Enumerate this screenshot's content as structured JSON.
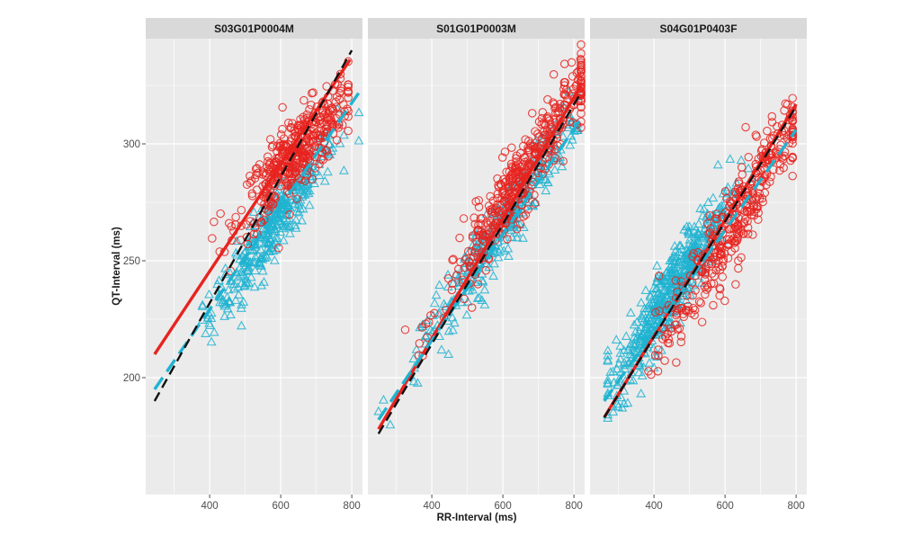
{
  "chart_data": {
    "type": "scatter",
    "xlabel": "RR-Interval (ms)",
    "ylabel": "QT-Interval (ms)",
    "xlim": [
      220,
      830
    ],
    "ylim": [
      150,
      345
    ],
    "x_ticks": [
      400,
      600,
      800
    ],
    "y_ticks": [
      200,
      250,
      300
    ],
    "grid": true,
    "colors": {
      "red": "#e8231f",
      "cyan": "#1fb3d1",
      "black": "#111111",
      "panel_bg": "#ebebeb",
      "strip_bg": "#d9d9d9",
      "grid": "#ffffff"
    },
    "panels": [
      {
        "title": "S03G01P0004M",
        "red_cloud": {
          "x_range": [
            390,
            790
          ],
          "center": [
            640,
            295
          ],
          "slope": 0.16,
          "spread": 8,
          "n": 420
        },
        "cyan_cloud": {
          "x_range": [
            380,
            820
          ],
          "center": [
            580,
            265
          ],
          "slope": 0.21,
          "spread": 7,
          "n": 360
        },
        "lines": [
          {
            "color": "red",
            "style": "solid",
            "x": [
              245,
              795
            ],
            "y": [
              210,
              336
            ]
          },
          {
            "color": "cyan",
            "style": "dashed",
            "x": [
              245,
              825
            ],
            "y": [
              195,
              323
            ]
          },
          {
            "color": "black",
            "style": "dashed",
            "x": [
              245,
              800
            ],
            "y": [
              190,
              340
            ]
          }
        ]
      },
      {
        "title": "S01G01P0003M",
        "red_cloud": {
          "x_range": [
            280,
            820
          ],
          "center": [
            650,
            285
          ],
          "slope": 0.23,
          "spread": 8,
          "n": 440
        },
        "cyan_cloud": {
          "x_range": [
            250,
            810
          ],
          "center": [
            600,
            265
          ],
          "slope": 0.23,
          "spread": 7,
          "n": 330
        },
        "lines": [
          {
            "color": "red",
            "style": "solid",
            "x": [
              250,
              820
            ],
            "y": [
              178,
              325
            ]
          },
          {
            "color": "cyan",
            "style": "dashed",
            "x": [
              250,
              820
            ],
            "y": [
              182,
              311
            ]
          },
          {
            "color": "black",
            "style": "dashed",
            "x": [
              250,
              820
            ],
            "y": [
              176,
              322
            ]
          }
        ]
      },
      {
        "title": "S04G01P0403F",
        "red_cloud": {
          "x_range": [
            270,
            790
          ],
          "center": [
            620,
            265
          ],
          "slope": 0.26,
          "spread": 9,
          "n": 380
        },
        "cyan_cloud": {
          "x_range": [
            270,
            680
          ],
          "center": [
            450,
            238
          ],
          "slope": 0.24,
          "spread": 8,
          "n": 520
        },
        "lines": [
          {
            "color": "red",
            "style": "solid",
            "x": [
              260,
              800
            ],
            "y": [
              183,
              317
            ]
          },
          {
            "color": "cyan",
            "style": "dashed",
            "x": [
              260,
              800
            ],
            "y": [
              190,
              306
            ]
          },
          {
            "color": "black",
            "style": "dashed",
            "x": [
              260,
              800
            ],
            "y": [
              183,
              316
            ]
          }
        ]
      }
    ]
  }
}
